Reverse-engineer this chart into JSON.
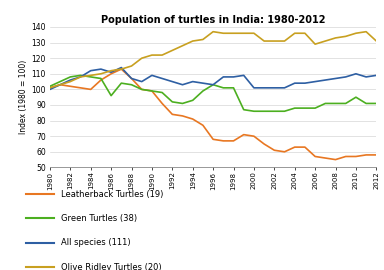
{
  "title": "Population of turtles in India: 1980-2012",
  "ylabel": "Index (1980 = 100)",
  "years": [
    1980,
    1981,
    1982,
    1983,
    1984,
    1985,
    1986,
    1987,
    1988,
    1989,
    1990,
    1991,
    1992,
    1993,
    1994,
    1995,
    1996,
    1997,
    1998,
    1999,
    2000,
    2001,
    2002,
    2003,
    2004,
    2005,
    2006,
    2007,
    2008,
    2009,
    2010,
    2011,
    2012
  ],
  "leatherback": [
    101,
    103,
    102,
    101,
    100,
    106,
    110,
    113,
    107,
    100,
    99,
    91,
    84,
    83,
    81,
    77,
    68,
    67,
    67,
    71,
    70,
    65,
    61,
    60,
    63,
    63,
    57,
    56,
    55,
    57,
    57,
    58,
    58
  ],
  "green": [
    102,
    105,
    108,
    109,
    108,
    107,
    96,
    104,
    103,
    100,
    99,
    98,
    92,
    91,
    93,
    99,
    103,
    101,
    101,
    87,
    86,
    86,
    86,
    86,
    88,
    88,
    88,
    91,
    91,
    91,
    95,
    91,
    91
  ],
  "all_species": [
    100,
    103,
    106,
    108,
    112,
    113,
    111,
    114,
    107,
    105,
    109,
    107,
    105,
    103,
    105,
    104,
    103,
    108,
    108,
    109,
    101,
    101,
    101,
    101,
    104,
    104,
    105,
    106,
    107,
    108,
    110,
    108,
    109
  ],
  "olive_ridley": [
    101,
    103,
    105,
    108,
    109,
    110,
    112,
    113,
    115,
    120,
    122,
    122,
    125,
    128,
    131,
    132,
    137,
    136,
    136,
    136,
    136,
    131,
    131,
    131,
    136,
    136,
    129,
    131,
    133,
    134,
    136,
    137,
    131
  ],
  "leatherback_color": "#E87722",
  "green_color": "#4CAF20",
  "all_species_color": "#2E5FA3",
  "olive_ridley_color": "#C8A020",
  "xtick_years": [
    1980,
    1982,
    1984,
    1986,
    1988,
    1990,
    1992,
    1994,
    1996,
    1998,
    2000,
    2002,
    2004,
    2006,
    2008,
    2010,
    2012
  ],
  "ylim": [
    50,
    140
  ],
  "yticks": [
    50,
    60,
    70,
    80,
    90,
    100,
    110,
    120,
    130,
    140
  ],
  "legend_entries": [
    "Leatherback Turtles (19)",
    "Green Turtles (38)",
    "All species (111)",
    "Olive Ridley Turtles (20)"
  ]
}
